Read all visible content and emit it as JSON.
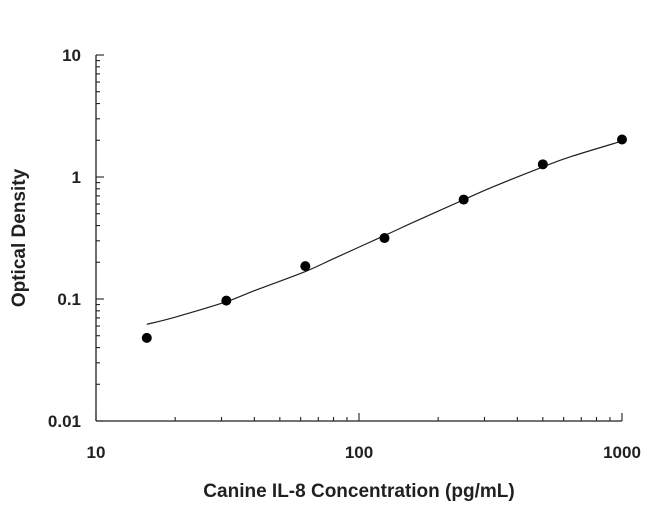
{
  "chart_data": {
    "type": "scatter",
    "title": "",
    "xlabel": "Canine IL-8 Concentration (pg/mL)",
    "ylabel": "Optical Density",
    "x_scale": "log",
    "y_scale": "log",
    "xlim": [
      10,
      1000
    ],
    "ylim": [
      0.01,
      10
    ],
    "x_major_ticks": [
      10,
      100,
      1000
    ],
    "x_tick_labels": [
      "10",
      "100",
      "1000"
    ],
    "y_major_ticks": [
      0.01,
      0.1,
      1,
      10
    ],
    "y_tick_labels": [
      "0.01",
      "0.1",
      "1",
      "10"
    ],
    "grid": false,
    "legend": "none",
    "series": [
      {
        "type": "scatter",
        "x": [
          15.6,
          31.3,
          62.5,
          125,
          250,
          500,
          1000
        ],
        "y": [
          0.048,
          0.097,
          0.186,
          0.316,
          0.653,
          1.27,
          2.03
        ]
      },
      {
        "type": "line",
        "fit": "four-parameter logistic",
        "x": [
          15.6,
          20,
          31.3,
          40,
          62.5,
          80,
          125,
          160,
          250,
          320,
          500,
          640,
          1000
        ],
        "y": [
          0.062,
          0.071,
          0.095,
          0.117,
          0.168,
          0.214,
          0.331,
          0.423,
          0.651,
          0.823,
          1.21,
          1.47,
          1.97
        ]
      }
    ],
    "colors": {
      "points": "#000000",
      "line": "#231f20",
      "axis": "#231f20"
    }
  }
}
